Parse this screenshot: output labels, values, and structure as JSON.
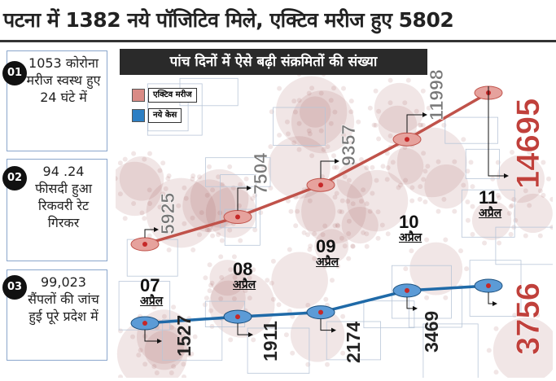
{
  "headline": "पटना में 1382 नये पॉजिटिव मिले, एक्टिव मरीज हुए 5802",
  "stats": [
    {
      "num": "01",
      "text": "1053 कोरोना मरीज स्वस्थ हुए 24 घंटे में"
    },
    {
      "num": "02",
      "text": "94 .24 फीसदी हुआ रिकवरी रेट गिरकर"
    },
    {
      "num": "03",
      "text": "99,023 सैंपलों की जांच हुई पूरे प्रदेश में"
    }
  ],
  "colors": {
    "active": "#c0524a",
    "new": "#1f6aa8"
  },
  "chart_data": {
    "type": "line",
    "title": "पांच दिनों में ऐसे बढ़ी संक्रमितों की संख्या",
    "categories": [
      "07 अप्रैल",
      "08 अप्रैल",
      "09 अप्रैल",
      "10 अप्रैल",
      "11 अप्रैल"
    ],
    "dates": [
      {
        "day": "07",
        "month": "अप्रैल"
      },
      {
        "day": "08",
        "month": "अप्रैल"
      },
      {
        "day": "09",
        "month": "अप्रैल"
      },
      {
        "day": "10",
        "month": "अप्रैल"
      },
      {
        "day": "11",
        "month": "अप्रैल"
      }
    ],
    "series": [
      {
        "name": "एक्टिव मरीज",
        "values": [
          5925,
          7504,
          9357,
          11998,
          14695
        ]
      },
      {
        "name": "नये केस",
        "values": [
          1527,
          1911,
          2174,
          3469,
          3756
        ]
      }
    ],
    "labels": {
      "active": [
        "5925",
        "7504",
        "9357",
        "11998",
        "14695"
      ],
      "new": [
        "1527",
        "1911",
        "2174",
        "3469",
        "3756"
      ]
    }
  }
}
